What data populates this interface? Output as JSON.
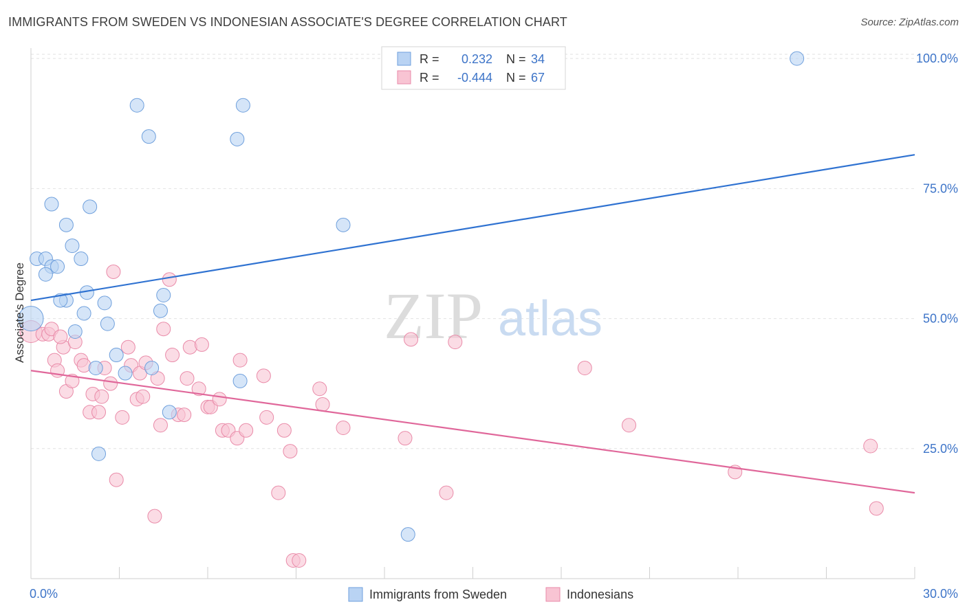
{
  "header": {
    "title": "IMMIGRANTS FROM SWEDEN VS INDONESIAN ASSOCIATE'S DEGREE CORRELATION CHART",
    "source": "Source: ZipAtlas.com"
  },
  "watermark": {
    "zip": "ZIP",
    "atlas": "atlas"
  },
  "legend": {
    "r_label": "R =",
    "n_label": "N =",
    "rows": [
      {
        "r": "0.232",
        "n": "34"
      },
      {
        "r": "-0.444",
        "n": "67"
      }
    ]
  },
  "chart_data": {
    "type": "scatter",
    "title": "IMMIGRANTS FROM SWEDEN VS INDONESIAN ASSOCIATE'S DEGREE CORRELATION CHART",
    "xlabel": "",
    "ylabel": "Associate's Degree",
    "xlim": [
      0,
      30
    ],
    "ylim": [
      0,
      102
    ],
    "x_tick_labels": [
      "0.0%",
      "30.0%"
    ],
    "y_ticks": [
      25,
      50,
      75,
      100
    ],
    "y_tick_labels": [
      "25.0%",
      "50.0%",
      "75.0%",
      "100.0%"
    ],
    "grid": true,
    "legend_position": "top-center",
    "colors": {
      "sweden_fill": "#b9d3f3",
      "sweden_stroke": "#6e9fdc",
      "sweden_line": "#2f72d1",
      "indonesian_fill": "#f8c4d3",
      "indonesian_stroke": "#e98aa8",
      "indonesian_line": "#e0679a",
      "axis_text": "#3d74c8"
    },
    "series": [
      {
        "name": "Immigrants from Sweden",
        "r": 0.232,
        "n": 34,
        "trend": {
          "x": [
            0,
            30
          ],
          "y": [
            53.5,
            81.5
          ]
        },
        "points": [
          [
            0.0,
            50.0,
            18
          ],
          [
            0.2,
            61.5,
            10
          ],
          [
            0.5,
            61.5,
            10
          ],
          [
            0.7,
            60.0,
            10
          ],
          [
            0.9,
            60.0,
            10
          ],
          [
            0.5,
            58.5,
            10
          ],
          [
            0.7,
            72.0,
            10
          ],
          [
            1.2,
            68.0,
            10
          ],
          [
            1.4,
            64.0,
            10
          ],
          [
            1.7,
            61.5,
            10
          ],
          [
            2.0,
            71.5,
            10
          ],
          [
            1.9,
            55.0,
            10
          ],
          [
            1.2,
            53.5,
            10
          ],
          [
            1.0,
            53.5,
            10
          ],
          [
            2.5,
            53.0,
            10
          ],
          [
            1.8,
            51.0,
            10
          ],
          [
            2.6,
            49.0,
            10
          ],
          [
            1.5,
            47.5,
            10
          ],
          [
            3.6,
            91.0,
            10
          ],
          [
            4.0,
            85.0,
            10
          ],
          [
            4.4,
            51.5,
            10
          ],
          [
            4.5,
            54.5,
            10
          ],
          [
            2.2,
            40.5,
            10
          ],
          [
            2.9,
            43.0,
            10
          ],
          [
            3.2,
            39.5,
            10
          ],
          [
            4.1,
            40.5,
            10
          ],
          [
            4.7,
            32.0,
            10
          ],
          [
            2.3,
            24.0,
            10
          ],
          [
            7.2,
            91.0,
            10
          ],
          [
            7.0,
            84.5,
            10
          ],
          [
            7.1,
            38.0,
            10
          ],
          [
            10.6,
            68.0,
            10
          ],
          [
            12.8,
            8.5,
            10
          ],
          [
            26.0,
            100.0,
            10
          ]
        ]
      },
      {
        "name": "Indonesians",
        "r": -0.444,
        "n": 67,
        "trend": {
          "x": [
            0,
            30
          ],
          "y": [
            40.0,
            16.5
          ]
        },
        "points": [
          [
            0.0,
            47.5,
            16
          ],
          [
            0.4,
            47.0,
            10
          ],
          [
            0.6,
            47.0,
            10
          ],
          [
            0.7,
            48.0,
            10
          ],
          [
            0.8,
            42.0,
            10
          ],
          [
            0.9,
            40.0,
            10
          ],
          [
            1.1,
            44.5,
            10
          ],
          [
            1.2,
            36.0,
            10
          ],
          [
            1.4,
            38.0,
            10
          ],
          [
            1.5,
            45.5,
            10
          ],
          [
            1.7,
            42.0,
            10
          ],
          [
            1.8,
            41.0,
            10
          ],
          [
            2.0,
            32.0,
            10
          ],
          [
            2.1,
            35.5,
            10
          ],
          [
            2.3,
            32.0,
            10
          ],
          [
            2.4,
            35.0,
            10
          ],
          [
            2.5,
            40.5,
            10
          ],
          [
            2.7,
            37.5,
            10
          ],
          [
            2.8,
            59.0,
            10
          ],
          [
            2.9,
            19.0,
            10
          ],
          [
            3.1,
            31.0,
            10
          ],
          [
            3.3,
            44.5,
            10
          ],
          [
            3.4,
            41.0,
            10
          ],
          [
            3.6,
            34.5,
            10
          ],
          [
            3.7,
            39.5,
            10
          ],
          [
            3.8,
            35.0,
            10
          ],
          [
            3.9,
            41.5,
            10
          ],
          [
            4.2,
            12.0,
            10
          ],
          [
            4.3,
            38.5,
            10
          ],
          [
            4.4,
            29.5,
            10
          ],
          [
            4.5,
            48.0,
            10
          ],
          [
            4.7,
            57.5,
            10
          ],
          [
            4.8,
            43.0,
            10
          ],
          [
            5.0,
            31.5,
            10
          ],
          [
            5.2,
            31.5,
            10
          ],
          [
            5.3,
            38.5,
            10
          ],
          [
            5.4,
            44.5,
            10
          ],
          [
            5.7,
            36.5,
            10
          ],
          [
            5.8,
            45.0,
            10
          ],
          [
            6.0,
            33.0,
            10
          ],
          [
            6.1,
            33.0,
            10
          ],
          [
            6.4,
            34.5,
            10
          ],
          [
            6.5,
            28.5,
            10
          ],
          [
            6.7,
            28.5,
            10
          ],
          [
            7.0,
            27.0,
            10
          ],
          [
            7.1,
            42.0,
            10
          ],
          [
            7.3,
            28.5,
            10
          ],
          [
            7.9,
            39.0,
            10
          ],
          [
            8.0,
            31.0,
            10
          ],
          [
            8.4,
            16.5,
            10
          ],
          [
            8.6,
            28.5,
            10
          ],
          [
            8.8,
            24.5,
            10
          ],
          [
            8.9,
            3.5,
            10
          ],
          [
            9.1,
            3.5,
            10
          ],
          [
            9.8,
            36.5,
            10
          ],
          [
            9.9,
            33.5,
            10
          ],
          [
            10.6,
            29.0,
            10
          ],
          [
            12.7,
            27.0,
            10
          ],
          [
            12.9,
            46.0,
            10
          ],
          [
            14.1,
            16.5,
            10
          ],
          [
            14.4,
            45.5,
            10
          ],
          [
            18.8,
            40.5,
            10
          ],
          [
            20.3,
            29.5,
            10
          ],
          [
            23.9,
            20.5,
            10
          ],
          [
            28.5,
            25.5,
            10
          ],
          [
            28.7,
            13.5,
            10
          ],
          [
            1.0,
            46.5,
            10
          ]
        ]
      }
    ]
  }
}
